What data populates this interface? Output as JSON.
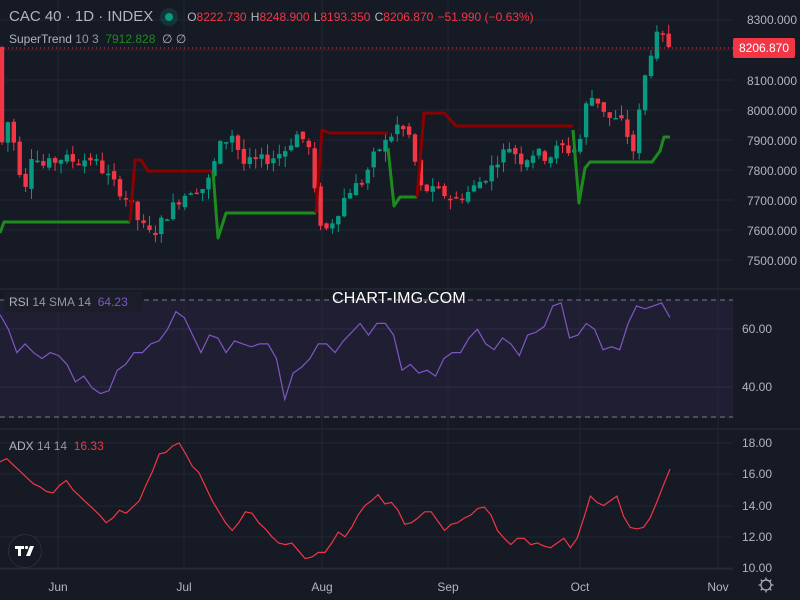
{
  "header": {
    "symbol": "CAC 40 · 1D · INDEX",
    "market_status_color": "#089981",
    "ohlc": {
      "open_label": "O",
      "open": "8222.730",
      "high_label": "H",
      "high": "8248.900",
      "low_label": "L",
      "low": "8193.350",
      "close_label": "C",
      "close": "8206.870",
      "change": "−51.990 (−0.63%)"
    }
  },
  "indicators": {
    "supertrend": {
      "name": "SuperTrend",
      "params": "10 3",
      "value": "7912.828",
      "extra1": "∅",
      "extra2": "∅"
    },
    "rsi": {
      "name": "RSI",
      "params": "14 SMA 14",
      "value": "64.23"
    },
    "adx": {
      "name": "ADX",
      "params": "14 14",
      "value": "16.33"
    }
  },
  "watermark": "CHART-IMG.COM",
  "current_price_tag": "8206.870",
  "colors": {
    "background": "#161a25",
    "up": "#089981",
    "down": "#f23645",
    "supertrend_up": "#1e8b1e",
    "supertrend_down": "#8b0000",
    "rsi_line": "#7e57c2",
    "adx_line": "#f23645"
  },
  "price_axis": [
    "8300.000",
    "8100.000",
    "8000.000",
    "7900.000",
    "7800.000",
    "7700.000",
    "7600.000",
    "7500.000"
  ],
  "rsi_axis": [
    "60.00",
    "40.00"
  ],
  "adx_axis": [
    "18.00",
    "16.00",
    "14.00",
    "12.00",
    "10.00"
  ],
  "time_axis": [
    "Jun",
    "Jul",
    "Aug",
    "Sep",
    "Oct",
    "Nov"
  ],
  "chart_data": [
    {
      "type": "candlestick",
      "title": "CAC 40 · 1D · INDEX",
      "ylabel": "Price",
      "ylim": [
        7450,
        8330
      ],
      "x_ticks": [
        "Jun",
        "Jul",
        "Aug",
        "Sep",
        "Oct",
        "Nov"
      ],
      "last": {
        "open": 8222.73,
        "high": 8248.9,
        "low": 8193.35,
        "close": 8206.87,
        "change": -51.99,
        "change_pct": -0.63
      },
      "supertrend": {
        "params": "10 3",
        "last_value": 7912.828,
        "segments": [
          {
            "trend": "up",
            "level_approx": 7640,
            "period": "late May–mid Jun"
          },
          {
            "trend": "down",
            "level_approx": 7800,
            "period": "mid Jun–early Jul"
          },
          {
            "trend": "up",
            "level_approx": 7665,
            "period": "Jul"
          },
          {
            "trend": "down",
            "level_approx": 7935,
            "period": "early–mid Aug"
          },
          {
            "trend": "up",
            "level_approx": 7720,
            "period": "mid–late Aug"
          },
          {
            "trend": "down",
            "level_approx": 7935,
            "period": "late Aug–Sep"
          },
          {
            "trend": "up",
            "level_approx": 7830,
            "period": "Oct"
          },
          {
            "trend": "up",
            "level_approx": 7912.8,
            "period": "latest"
          }
        ]
      },
      "approx_range": {
        "low": 7520,
        "high": 8270
      }
    },
    {
      "type": "line",
      "title": "RSI 14 SMA 14",
      "ylim": [
        28,
        72
      ],
      "y_ticks": [
        60,
        40
      ],
      "bands": [
        70,
        30
      ],
      "last_value": 64.23,
      "values_approx": [
        65,
        60,
        52,
        55,
        52,
        50,
        52,
        51,
        48,
        42,
        44,
        40,
        38,
        39,
        46,
        48,
        52,
        52,
        55,
        56,
        60,
        66,
        64,
        58,
        52,
        58,
        57,
        52,
        56,
        55,
        54,
        55,
        55,
        50,
        36,
        45,
        47,
        50,
        55,
        55,
        52,
        56,
        59,
        62,
        58,
        62,
        62,
        58,
        46,
        48,
        45,
        46,
        44,
        50,
        52,
        52,
        57,
        60,
        55,
        53,
        57,
        55,
        51,
        58,
        59,
        61,
        68,
        69,
        57,
        58,
        62,
        60,
        53,
        54,
        53,
        62,
        68,
        67,
        68,
        69,
        64
      ]
    },
    {
      "type": "line",
      "title": "ADX 14 14",
      "ylim": [
        9.8,
        18.5
      ],
      "y_ticks": [
        18,
        16,
        14,
        12,
        10
      ],
      "last_value": 16.33,
      "values_approx": [
        16.8,
        17.0,
        16.6,
        16.2,
        15.8,
        15.4,
        15.2,
        14.9,
        14.8,
        15.3,
        15.6,
        15.0,
        14.6,
        14.2,
        13.8,
        13.4,
        12.9,
        13.2,
        13.7,
        13.5,
        13.9,
        14.3,
        15.3,
        16.2,
        17.3,
        17.4,
        17.8,
        18.0,
        17.3,
        16.5,
        16.1,
        15.2,
        14.3,
        13.6,
        12.9,
        12.4,
        12.9,
        13.6,
        13.5,
        12.9,
        12.5,
        12.0,
        11.6,
        11.5,
        11.6,
        11.1,
        10.6,
        10.7,
        11.0,
        11.0,
        11.6,
        12.3,
        12.0,
        12.6,
        13.4,
        14.0,
        14.3,
        14.7,
        14.1,
        14.2,
        13.7,
        12.8,
        12.9,
        13.2,
        13.6,
        13.6,
        13.0,
        12.4,
        12.8,
        12.9,
        13.2,
        13.4,
        13.8,
        13.9,
        13.4,
        12.4,
        11.9,
        11.5,
        11.9,
        11.9,
        11.5,
        11.6,
        11.4,
        11.3,
        11.6,
        11.9,
        11.3,
        11.9,
        13.2,
        14.6,
        14.2,
        14.0,
        14.3,
        14.6,
        13.3,
        12.6,
        12.5,
        12.6,
        13.2,
        14.2,
        15.3,
        16.33
      ]
    }
  ]
}
